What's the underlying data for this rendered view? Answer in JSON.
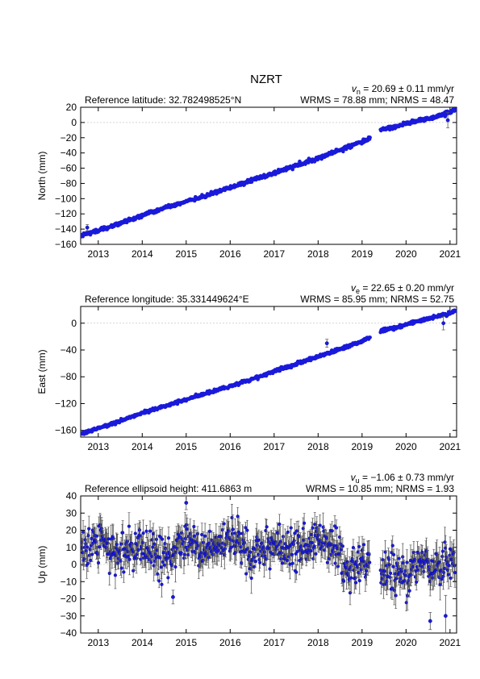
{
  "figure": {
    "title": "NZRT"
  },
  "chart_data": [
    {
      "type": "scatter",
      "panel": "north",
      "ylabel": "North (mm)",
      "xlabel": "",
      "ref_label": "Reference latitude: 32.782498525°N",
      "velocity": {
        "symbol": "v",
        "sub": "n",
        "text": " = 20.69 ± 0.11 mm/yr",
        "value": 20.69,
        "sigma": 0.11,
        "unit": "mm/yr"
      },
      "stats": "WRMS = 78.88 mm; NRMS = 48.47",
      "xlim": [
        2012.6,
        2021.15
      ],
      "ylim": [
        -160,
        20
      ],
      "yticks": [
        -160,
        -140,
        -120,
        -100,
        -80,
        -60,
        -40,
        -20,
        0,
        20
      ],
      "xticks": [
        2013,
        2014,
        2015,
        2016,
        2017,
        2018,
        2019,
        2020,
        2021
      ],
      "zero_line": true,
      "series": [
        {
          "color": "#1a1adb",
          "errorbar_color": "#555555",
          "segments": [
            {
              "x": [
                2012.62,
                2013.0,
                2013.5,
                2014.0,
                2014.5,
                2015.0,
                2015.5,
                2016.0,
                2016.5,
                2017.0,
                2017.5,
                2018.0,
                2018.5,
                2019.0,
                2019.18
              ],
              "y": [
                -148,
                -142,
                -133,
                -122,
                -112,
                -104,
                -95,
                -85,
                -76,
                -66,
                -57,
                -47,
                -36,
                -25,
                -21
              ]
            },
            {
              "x": [
                2019.42,
                2019.8,
                2020.2,
                2020.6,
                2021.0,
                2021.12
              ],
              "y": [
                -10,
                -5,
                2,
                6,
                13,
                17
              ]
            }
          ],
          "outliers": [
            {
              "x": 2012.75,
              "y": -138,
              "err": 4
            },
            {
              "x": 2020.95,
              "y": 3,
              "err": 10
            }
          ]
        }
      ]
    },
    {
      "type": "scatter",
      "panel": "east",
      "ylabel": "East (mm)",
      "xlabel": "",
      "ref_label": "Reference longitude: 35.331449624°E",
      "velocity": {
        "symbol": "v",
        "sub": "e",
        "text": " = 22.65 ± 0.20 mm/yr",
        "value": 22.65,
        "sigma": 0.2,
        "unit": "mm/yr"
      },
      "stats": "WRMS = 85.95 mm; NRMS = 52.75",
      "xlim": [
        2012.6,
        2021.15
      ],
      "ylim": [
        -170,
        25
      ],
      "yticks": [
        -160,
        -120,
        -80,
        -40,
        0
      ],
      "xticks": [
        2013,
        2014,
        2015,
        2016,
        2017,
        2018,
        2019,
        2020,
        2021
      ],
      "zero_line": true,
      "series": [
        {
          "color": "#1a1adb",
          "errorbar_color": "#555555",
          "segments": [
            {
              "x": [
                2012.62,
                2013.0,
                2013.5,
                2014.0,
                2014.5,
                2015.0,
                2015.5,
                2016.0,
                2016.5,
                2017.0,
                2017.5,
                2018.0,
                2018.5,
                2019.0,
                2019.18
              ],
              "y": [
                -165,
                -157,
                -146,
                -134,
                -124,
                -114,
                -104,
                -94,
                -84,
                -72,
                -61,
                -50,
                -39,
                -27,
                -21
              ]
            },
            {
              "x": [
                2019.42,
                2019.8,
                2020.2,
                2020.6,
                2021.0,
                2021.12
              ],
              "y": [
                -12,
                -6,
                2,
                8,
                15,
                19
              ]
            }
          ],
          "outliers": [
            {
              "x": 2018.2,
              "y": -30,
              "err": 6
            },
            {
              "x": 2020.85,
              "y": 0,
              "err": 10
            }
          ]
        }
      ]
    },
    {
      "type": "scatter",
      "panel": "up",
      "ylabel": "Up (mm)",
      "xlabel": "",
      "ref_label": "Reference ellipsoid height: 411.6863 m",
      "velocity": {
        "symbol": "v",
        "sub": "u",
        "text": " = −1.06 ± 0.73 mm/yr",
        "value": -1.06,
        "sigma": 0.73,
        "unit": "mm/yr"
      },
      "stats": "WRMS = 10.85 mm; NRMS = 1.93",
      "xlim": [
        2012.6,
        2021.15
      ],
      "ylim": [
        -40,
        40
      ],
      "yticks": [
        -40,
        -30,
        -20,
        -10,
        0,
        10,
        20,
        30,
        40
      ],
      "xticks": [
        2013,
        2014,
        2015,
        2016,
        2017,
        2018,
        2019,
        2020,
        2021
      ],
      "zero_line": true,
      "series": [
        {
          "color": "#1a1adb",
          "errorbar_color": "#555555",
          "mean_level_mm": 8,
          "seasonal_amplitude_mm": 6,
          "scatter_mm": 6,
          "segments": [
            {
              "x": [
                2012.62,
                2013.0,
                2013.5,
                2014.0,
                2014.5,
                2015.0,
                2015.5,
                2016.0,
                2016.5,
                2017.0,
                2017.5,
                2018.0,
                2018.4,
                2018.6,
                2019.0,
                2019.18
              ],
              "y": [
                10,
                12,
                5,
                12,
                6,
                15,
                5,
                17,
                5,
                14,
                6,
                14,
                10,
                -5,
                -2,
                -1
              ]
            },
            {
              "x": [
                2019.42,
                2019.8,
                2020.0,
                2020.3,
                2020.6,
                2020.9,
                2021.12
              ],
              "y": [
                -5,
                -3,
                -10,
                1,
                -5,
                2,
                -1
              ]
            }
          ],
          "outliers": [
            {
              "x": 2015.0,
              "y": 36,
              "err": 4
            },
            {
              "x": 2014.7,
              "y": -19,
              "err": 4
            },
            {
              "x": 2020.55,
              "y": -33,
              "err": 5
            },
            {
              "x": 2020.9,
              "y": -30,
              "err": 12
            }
          ]
        }
      ]
    }
  ]
}
